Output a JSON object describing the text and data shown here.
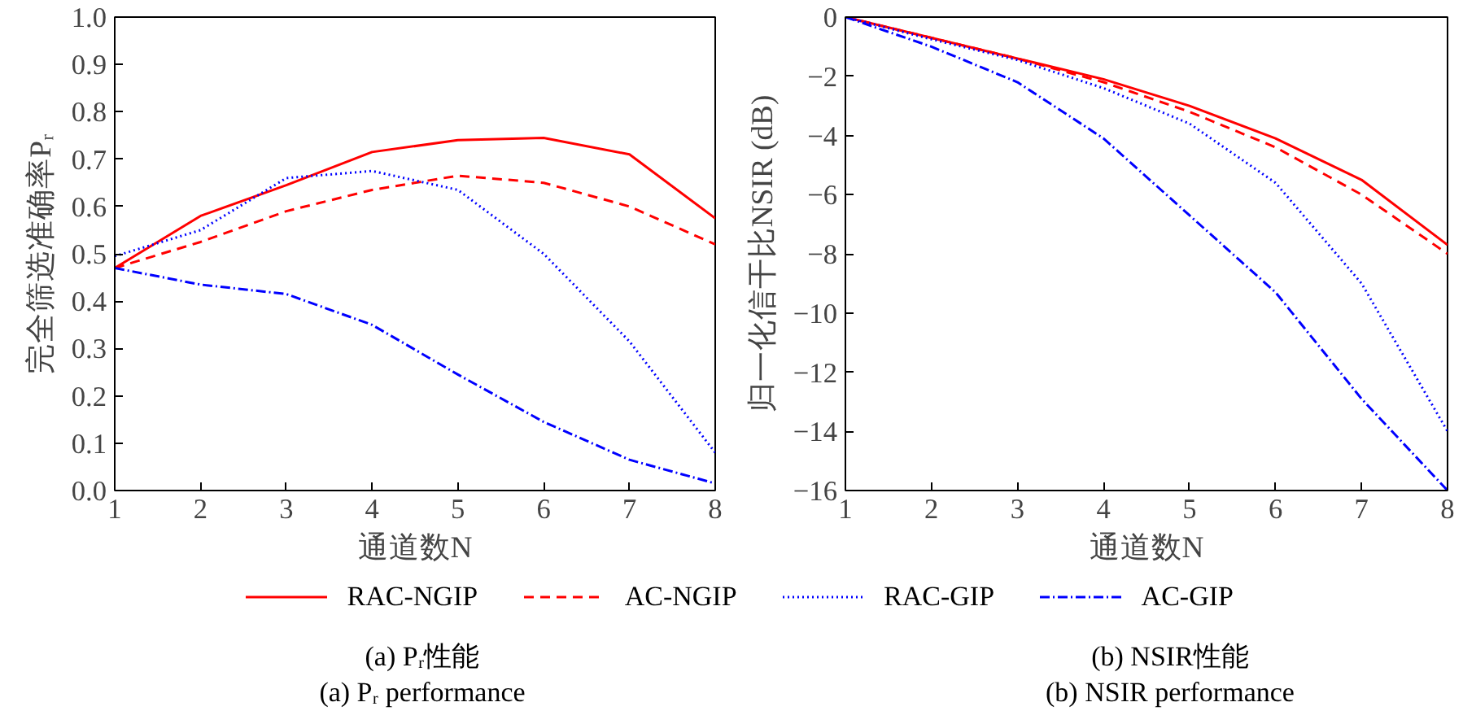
{
  "chart_data": [
    {
      "type": "line",
      "xlabel": "通道数N",
      "ylabel": "完全筛选准确率Pᵣ",
      "x": [
        1,
        2,
        3,
        4,
        5,
        6,
        7,
        8
      ],
      "xlim": [
        1,
        8
      ],
      "xticks": [
        1,
        2,
        3,
        4,
        5,
        6,
        7,
        8
      ],
      "ylim": [
        0,
        1
      ],
      "yticks": [
        {
          "value": 0,
          "label": "0.0"
        },
        0.1,
        0.2,
        0.3,
        0.4,
        0.5,
        0.6,
        0.7,
        0.8,
        0.9,
        {
          "value": 1,
          "label": "1.0"
        }
      ],
      "grid": false,
      "legend": "bottom",
      "marker": "none",
      "series": [
        {
          "name": "RAC-NGIP",
          "color": "#ff0000",
          "line_style": "solid",
          "values": [
            0.47,
            0.58,
            0.645,
            0.715,
            0.74,
            0.745,
            0.71,
            0.575
          ]
        },
        {
          "name": "AC-NGIP",
          "color": "#ff0000",
          "line_style": "dashed",
          "values": [
            0.47,
            0.525,
            0.59,
            0.635,
            0.665,
            0.65,
            0.6,
            0.52
          ]
        },
        {
          "name": "RAC-GIP",
          "color": "#0000ff",
          "line_style": "dotted",
          "values": [
            0.495,
            0.55,
            0.66,
            0.675,
            0.635,
            0.5,
            0.315,
            0.08
          ]
        },
        {
          "name": "AC-GIP",
          "color": "#0000ff",
          "line_style": "dashdot",
          "values": [
            0.47,
            0.435,
            0.415,
            0.35,
            0.245,
            0.145,
            0.065,
            0.015
          ]
        }
      ],
      "annotations": [
        "(a) Pᵣ性能",
        "(a) Pᵣ performance"
      ]
    },
    {
      "type": "line",
      "xlabel": "通道数N",
      "ylabel": "归一化信干比NSIR (dB)",
      "x": [
        1,
        2,
        3,
        4,
        5,
        6,
        7,
        8
      ],
      "xlim": [
        1,
        8
      ],
      "xticks": [
        1,
        2,
        3,
        4,
        5,
        6,
        7,
        8
      ],
      "ylim": [
        -16,
        0
      ],
      "yticks": [
        -16,
        -14,
        -12,
        -10,
        -8,
        -6,
        -4,
        -2,
        0
      ],
      "grid": false,
      "marker": "none",
      "series": [
        {
          "color": "#ff0000",
          "line_style": "solid",
          "values": [
            0,
            -0.7,
            -1.4,
            -2.1,
            -3.0,
            -4.1,
            -5.5,
            -7.7
          ]
        },
        {
          "color": "#ff0000",
          "line_style": "dashed",
          "values": [
            0,
            -0.7,
            -1.4,
            -2.2,
            -3.2,
            -4.4,
            -6.0,
            -8.0
          ]
        },
        {
          "color": "#0000ff",
          "line_style": "dotted",
          "values": [
            0,
            -0.75,
            -1.45,
            -2.4,
            -3.6,
            -5.6,
            -9.0,
            -14.0
          ]
        },
        {
          "color": "#0000ff",
          "line_style": "dashdot",
          "values": [
            0,
            -1.0,
            -2.2,
            -4.1,
            -6.7,
            -9.3,
            -12.9,
            -16.0
          ]
        }
      ],
      "annotations": [
        "(b) NSIR性能",
        "(b) NSIR performance"
      ]
    }
  ]
}
